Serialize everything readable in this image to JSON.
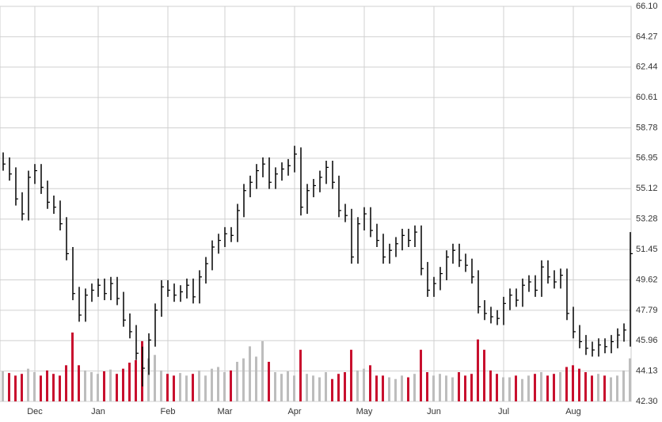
{
  "chart_data": {
    "type": "hlc",
    "categories": [
      null,
      null,
      null,
      null,
      null,
      "Dec",
      null,
      null,
      null,
      null,
      null,
      null,
      null,
      null,
      null,
      "Jan",
      null,
      null,
      null,
      null,
      null,
      null,
      null,
      null,
      null,
      null,
      "Feb",
      null,
      null,
      null,
      null,
      null,
      null,
      null,
      null,
      "Mar",
      null,
      null,
      null,
      null,
      null,
      null,
      null,
      null,
      null,
      null,
      "Apr",
      null,
      null,
      null,
      null,
      null,
      null,
      null,
      null,
      null,
      null,
      "May",
      null,
      null,
      null,
      null,
      null,
      null,
      null,
      null,
      null,
      null,
      "Jun",
      null,
      null,
      null,
      null,
      null,
      null,
      null,
      null,
      null,
      null,
      "Jul",
      null,
      null,
      null,
      null,
      null,
      null,
      null,
      null,
      null,
      null,
      "Aug",
      null,
      null,
      null,
      null,
      null,
      null,
      null,
      null,
      null
    ],
    "high": [
      57.3,
      57.0,
      56.4,
      54.9,
      56.2,
      56.6,
      56.6,
      55.6,
      54.7,
      54.4,
      53.4,
      51.6,
      49.2,
      49.1,
      49.4,
      49.7,
      49.7,
      49.8,
      49.8,
      48.9,
      47.6,
      46.9,
      45.6,
      46.4,
      48.2,
      49.6,
      49.6,
      49.4,
      49.3,
      49.7,
      49.7,
      50.2,
      51.0,
      52.0,
      52.4,
      52.8,
      52.8,
      54.2,
      55.4,
      55.9,
      56.6,
      57.0,
      57.0,
      56.4,
      56.7,
      56.9,
      57.7,
      57.6,
      55.4,
      55.7,
      56.2,
      56.8,
      56.8,
      55.9,
      54.2,
      53.9,
      53.4,
      54.0,
      54.0,
      53.0,
      52.4,
      51.8,
      52.2,
      52.7,
      52.7,
      52.9,
      52.9,
      50.7,
      49.8,
      50.4,
      51.4,
      51.8,
      51.8,
      51.2,
      50.9,
      50.2,
      48.4,
      48.0,
      47.8,
      48.6,
      49.1,
      49.1,
      49.7,
      49.9,
      49.9,
      50.8,
      50.8,
      50.2,
      50.3,
      50.3,
      48.0,
      46.9,
      46.3,
      45.9,
      46.1,
      46.1,
      46.3,
      46.7,
      47.0,
      52.5
    ],
    "low": [
      56.2,
      55.6,
      54.1,
      53.2,
      53.2,
      55.4,
      54.8,
      53.9,
      53.6,
      52.6,
      50.8,
      48.4,
      47.1,
      47.1,
      48.3,
      48.6,
      48.4,
      48.4,
      48.1,
      46.8,
      46.1,
      44.8,
      43.2,
      43.9,
      45.6,
      47.4,
      48.6,
      48.3,
      48.3,
      48.5,
      48.2,
      48.2,
      49.4,
      50.2,
      51.2,
      51.6,
      51.9,
      51.9,
      53.4,
      54.6,
      55.1,
      55.8,
      55.1,
      55.1,
      55.6,
      55.9,
      56.1,
      53.5,
      53.6,
      54.6,
      54.9,
      55.4,
      55.1,
      53.4,
      53.1,
      50.6,
      50.6,
      52.6,
      52.2,
      51.6,
      50.6,
      50.6,
      51.0,
      51.4,
      51.6,
      51.6,
      49.9,
      48.6,
      48.6,
      49.0,
      49.6,
      50.6,
      50.4,
      50.1,
      49.4,
      47.6,
      47.2,
      47.0,
      46.9,
      46.9,
      47.8,
      48.0,
      48.0,
      48.9,
      48.6,
      48.6,
      49.4,
      49.1,
      49.1,
      47.2,
      46.1,
      45.5,
      45.1,
      45.0,
      45.0,
      45.2,
      45.2,
      45.5,
      45.9,
      45.6
    ],
    "close": [
      56.6,
      56.0,
      54.5,
      53.6,
      55.8,
      56.2,
      55.2,
      54.3,
      54.0,
      53.0,
      51.2,
      48.8,
      47.5,
      48.7,
      49.0,
      49.3,
      48.8,
      49.4,
      48.5,
      47.2,
      46.5,
      45.2,
      44.3,
      46.0,
      47.8,
      49.2,
      49.0,
      48.7,
      48.9,
      49.3,
      48.6,
      49.8,
      50.6,
      51.6,
      52.0,
      52.4,
      52.3,
      53.8,
      55.0,
      55.5,
      56.2,
      56.6,
      55.5,
      56.0,
      56.3,
      56.5,
      57.2,
      54.0,
      55.0,
      55.3,
      55.8,
      56.4,
      55.5,
      53.8,
      53.5,
      51.0,
      53.0,
      53.6,
      52.6,
      52.0,
      51.0,
      51.4,
      51.8,
      52.3,
      52.0,
      52.5,
      50.3,
      49.0,
      49.4,
      50.0,
      51.0,
      51.4,
      50.8,
      50.5,
      49.8,
      48.0,
      47.6,
      47.4,
      47.3,
      48.2,
      48.7,
      48.4,
      49.3,
      49.5,
      49.0,
      50.4,
      49.8,
      49.5,
      49.9,
      47.6,
      46.5,
      45.9,
      45.5,
      45.4,
      45.7,
      45.6,
      45.9,
      46.3,
      46.6,
      51.2
    ],
    "volume": [
      3.5,
      3.3,
      3.0,
      3.2,
      3.8,
      3.4,
      3.0,
      3.6,
      3.2,
      3.0,
      4.2,
      8.0,
      4.2,
      3.6,
      3.4,
      3.2,
      3.5,
      3.7,
      3.2,
      3.8,
      4.5,
      4.8,
      7.0,
      5.0,
      5.4,
      3.6,
      3.2,
      3.0,
      3.3,
      3.0,
      3.2,
      3.6,
      3.0,
      3.8,
      4.0,
      3.4,
      3.6,
      4.6,
      5.0,
      6.4,
      5.2,
      7.0,
      4.6,
      3.4,
      3.2,
      3.5,
      3.0,
      6.0,
      3.2,
      3.0,
      2.8,
      3.4,
      2.6,
      3.2,
      3.4,
      6.0,
      3.6,
      3.8,
      4.2,
      3.0,
      3.0,
      2.8,
      2.6,
      3.0,
      2.8,
      3.2,
      6.0,
      3.4,
      3.0,
      3.2,
      3.0,
      2.8,
      3.4,
      3.0,
      3.2,
      7.2,
      6.0,
      3.6,
      3.2,
      2.8,
      2.8,
      3.0,
      2.6,
      3.0,
      3.2,
      3.4,
      3.0,
      3.2,
      3.4,
      4.0,
      4.2,
      3.8,
      3.4,
      3.0,
      3.2,
      3.0,
      2.8,
      3.0,
      3.6,
      5.0
    ],
    "color": "#000000",
    "volume_up_color": "#bdbdbd",
    "volume_down_color": "#c8102e",
    "ylim": [
      42.3,
      66.1
    ],
    "yticks": [
      {
        "value": 42.3,
        "label": "42.30"
      },
      44.13,
      45.96,
      47.79,
      49.62,
      51.45,
      53.28,
      55.12,
      56.95,
      58.78,
      60.61,
      62.44,
      64.27,
      {
        "value": 66.1,
        "label": "66.10"
      }
    ],
    "grid": true
  }
}
